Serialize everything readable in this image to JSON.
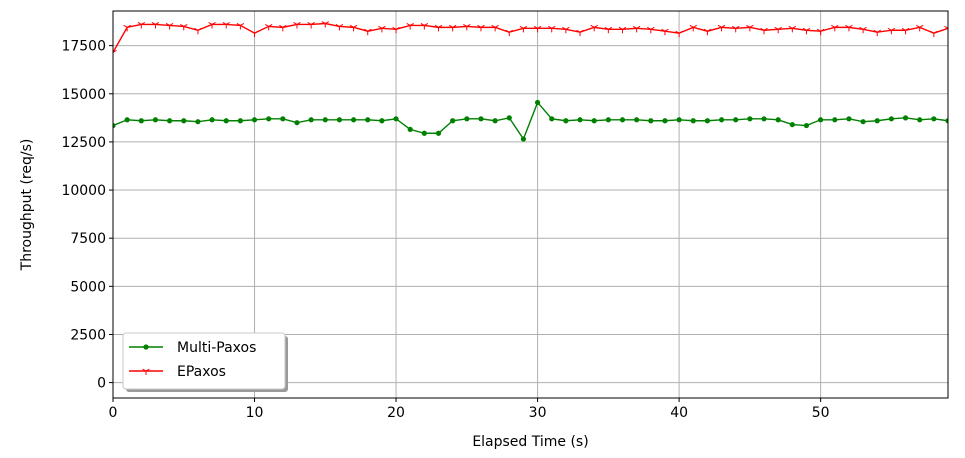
{
  "chart_data": {
    "type": "line",
    "title": "",
    "xlabel": "Elapsed Time (s)",
    "ylabel": "Throughput (req/s)",
    "xlim": [
      0,
      59
    ],
    "ylim": [
      -800,
      19300
    ],
    "xticks": [
      0,
      10,
      20,
      30,
      40,
      50
    ],
    "yticks": [
      0,
      2500,
      5000,
      7500,
      10000,
      12500,
      15000,
      17500
    ],
    "grid": true,
    "legend_position": "lower-left",
    "series": [
      {
        "name": "Multi-Paxos",
        "color": "#008000",
        "marker": "dot",
        "x": [
          0,
          1,
          2,
          3,
          4,
          5,
          6,
          7,
          8,
          9,
          10,
          11,
          12,
          13,
          14,
          15,
          16,
          17,
          18,
          19,
          20,
          21,
          22,
          23,
          24,
          25,
          26,
          27,
          28,
          29,
          30,
          31,
          32,
          33,
          34,
          35,
          36,
          37,
          38,
          39,
          40,
          41,
          42,
          43,
          44,
          45,
          46,
          47,
          48,
          49,
          50,
          51,
          52,
          53,
          54,
          55,
          56,
          57,
          58,
          59
        ],
        "values": [
          13350,
          13650,
          13600,
          13650,
          13600,
          13600,
          13550,
          13650,
          13600,
          13600,
          13650,
          13700,
          13700,
          13500,
          13650,
          13650,
          13650,
          13650,
          13650,
          13600,
          13700,
          13150,
          12950,
          12950,
          13600,
          13700,
          13700,
          13600,
          13750,
          12650,
          14550,
          13700,
          13600,
          13650,
          13600,
          13650,
          13650,
          13650,
          13600,
          13600,
          13650,
          13600,
          13600,
          13650,
          13650,
          13700,
          13700,
          13650,
          13400,
          13350,
          13650,
          13650,
          13700,
          13550,
          13600,
          13700,
          13750,
          13650,
          13700,
          13600
        ]
      },
      {
        "name": "EPaxos",
        "color": "#ff0000",
        "marker": "tri_down",
        "x": [
          0,
          1,
          2,
          3,
          4,
          5,
          6,
          7,
          8,
          9,
          10,
          11,
          12,
          13,
          14,
          15,
          16,
          17,
          18,
          19,
          20,
          21,
          22,
          23,
          24,
          25,
          26,
          27,
          28,
          29,
          30,
          31,
          32,
          33,
          34,
          35,
          36,
          37,
          38,
          39,
          40,
          41,
          42,
          43,
          44,
          45,
          46,
          47,
          48,
          49,
          50,
          51,
          52,
          53,
          54,
          55,
          56,
          57,
          58,
          59
        ],
        "values": [
          17150,
          18450,
          18600,
          18600,
          18550,
          18500,
          18300,
          18600,
          18600,
          18550,
          18150,
          18500,
          18450,
          18600,
          18600,
          18650,
          18500,
          18450,
          18250,
          18400,
          18350,
          18550,
          18550,
          18450,
          18450,
          18500,
          18450,
          18450,
          18200,
          18400,
          18400,
          18400,
          18350,
          18200,
          18450,
          18350,
          18350,
          18400,
          18350,
          18250,
          18150,
          18450,
          18250,
          18450,
          18400,
          18450,
          18300,
          18350,
          18400,
          18300,
          18250,
          18450,
          18450,
          18350,
          18200,
          18300,
          18300,
          18450,
          18150,
          18400
        ]
      }
    ]
  }
}
